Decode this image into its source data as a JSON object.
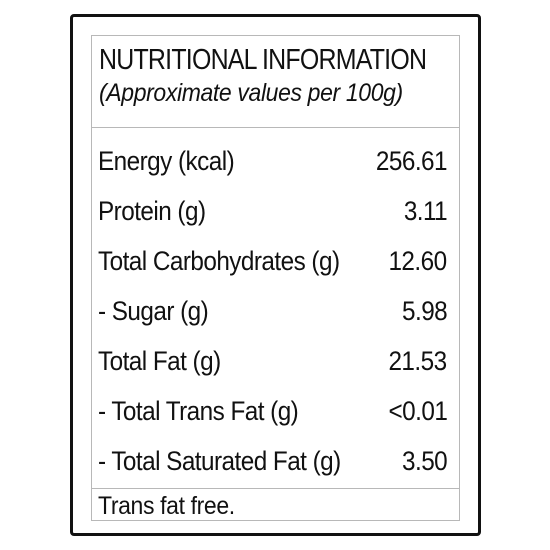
{
  "label": {
    "title": "NUTRITIONAL INFORMATION",
    "subtitle": "(Approximate values per 100g)",
    "rows": [
      {
        "name": "Energy (kcal)",
        "value": "256.61"
      },
      {
        "name": "Protein (g)",
        "value": "3.11"
      },
      {
        "name": "Total Carbohydrates (g)",
        "value": "12.60"
      },
      {
        "name": "- Sugar (g)",
        "value": "5.98"
      },
      {
        "name": "Total Fat (g)",
        "value": "21.53"
      },
      {
        "name": "- Total Trans Fat (g)",
        "value": "<0.01"
      },
      {
        "name": "- Total Saturated Fat (g)",
        "value": "3.50"
      }
    ],
    "footer": "Trans fat free."
  }
}
